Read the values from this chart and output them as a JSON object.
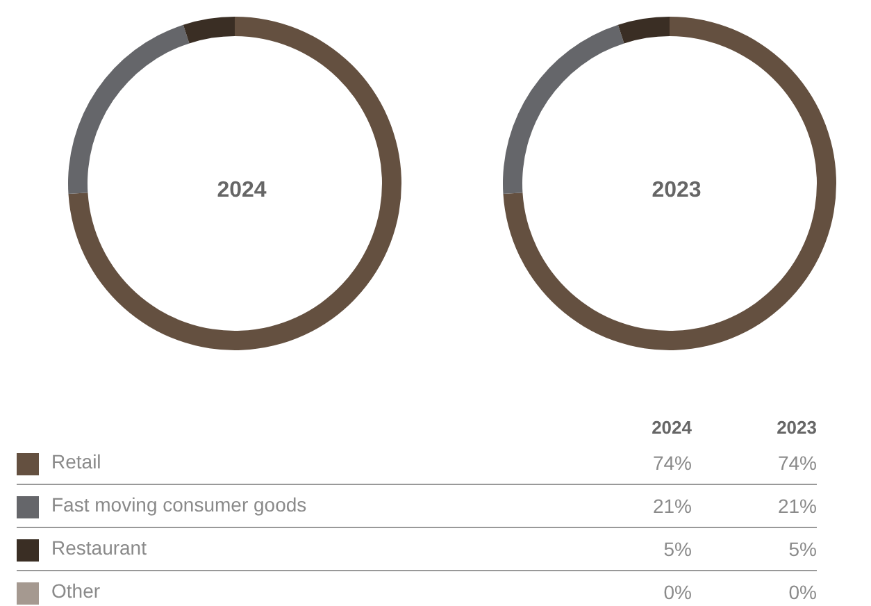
{
  "chart_data": {
    "type": "donut",
    "categories": [
      "Retail",
      "Fast moving consumer goods",
      "Restaurant",
      "Other"
    ],
    "colors": [
      "#645040",
      "#65666a",
      "#3a2e24",
      "#a59990"
    ],
    "legend": "bottom",
    "series": [
      {
        "name": "2024",
        "values": [
          74,
          21,
          5,
          0
        ],
        "value_labels": [
          "74%",
          "21%",
          "5%",
          "0%"
        ]
      },
      {
        "name": "2023",
        "values": [
          74,
          21,
          5,
          0
        ],
        "value_labels": [
          "74%",
          "21%",
          "5%",
          "0%"
        ]
      }
    ]
  }
}
